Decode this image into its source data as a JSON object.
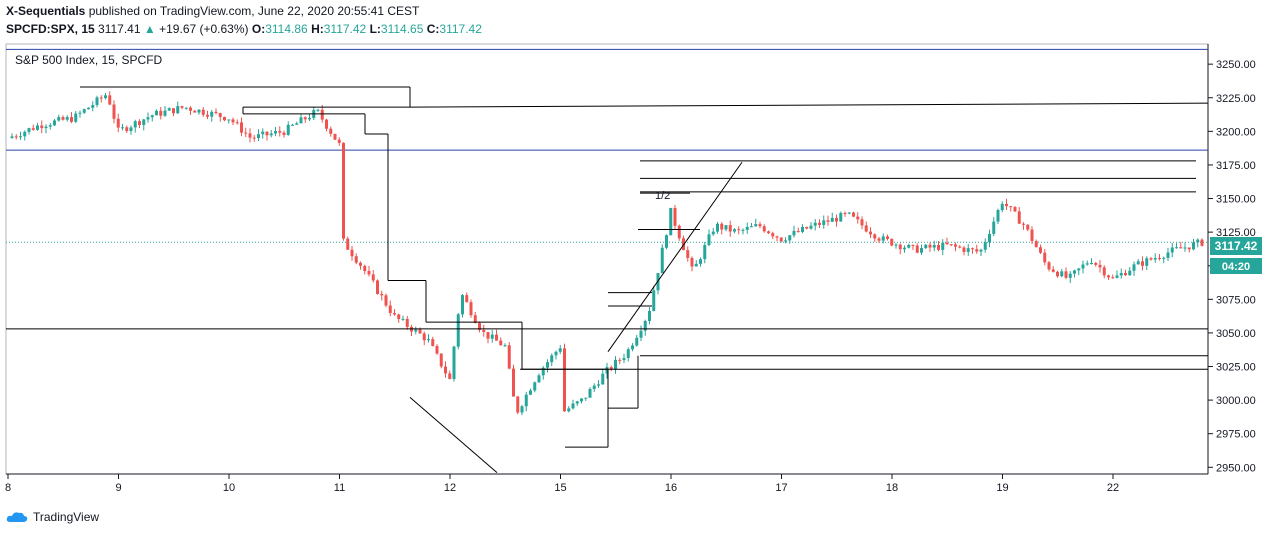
{
  "header": {
    "author": "X-Sequentials",
    "published": "published on TradingView.com, June 22, 2020 20:55:41 CEST",
    "symbol": "SPCFD:SPX, 15",
    "last": "3117.41",
    "change_icon": "triangle-up-icon",
    "change": "+19.67 (+0.63%)",
    "o_label": "O:",
    "o": "3114.86",
    "h_label": "H:",
    "h": "3117.42",
    "l_label": "L:",
    "l": "3114.65",
    "c_label": "C:",
    "c": "3117.42"
  },
  "legend_title": "S&P 500 Index, 15, SPCFD",
  "annotation_half": "1/2",
  "price_badge": "3117.42",
  "time_badge": "04:20",
  "footer": {
    "brand": "TradingView",
    "logo_icon": "tradingview-cloud-icon"
  },
  "colors": {
    "up": "#26a69a",
    "down": "#ef5350",
    "hline": "#2a45a6",
    "line": "#000000",
    "badge": "#26a69a"
  },
  "chart_data": {
    "type": "candlestick",
    "title": "S&P 500 Index, 15, SPCFD",
    "ylim": [
      2945,
      3265
    ],
    "y_ticks": [
      "3250.00",
      "3225.00",
      "3200.00",
      "3175.00",
      "3150.00",
      "3125.00",
      "3100.00",
      "3075.00",
      "3050.00",
      "3025.00",
      "3000.00",
      "2975.00",
      "2950.00"
    ],
    "x_ticks": [
      "8",
      "9",
      "10",
      "11",
      "12",
      "15",
      "16",
      "17",
      "18",
      "19",
      "22"
    ],
    "price_path": [
      [
        0,
        3195
      ],
      [
        0.3,
        3205
      ],
      [
        0.6,
        3210
      ],
      [
        0.9,
        3228
      ],
      [
        1.0,
        3200
      ],
      [
        1.3,
        3212
      ],
      [
        1.6,
        3218
      ],
      [
        2.0,
        3210
      ],
      [
        2.2,
        3195
      ],
      [
        2.5,
        3200
      ],
      [
        2.8,
        3215
      ],
      [
        3.0,
        3190
      ],
      [
        3.0,
        3122
      ],
      [
        3.2,
        3100
      ],
      [
        3.5,
        3062
      ],
      [
        3.8,
        3045
      ],
      [
        4.0,
        3015
      ],
      [
        4.1,
        3080
      ],
      [
        4.3,
        3050
      ],
      [
        4.5,
        3040
      ],
      [
        4.6,
        2990
      ],
      [
        4.8,
        3020
      ],
      [
        5.0,
        3040
      ],
      [
        5.0,
        2990
      ],
      [
        5.2,
        3000
      ],
      [
        5.4,
        3020
      ],
      [
        5.6,
        3035
      ],
      [
        5.8,
        3065
      ],
      [
        6.0,
        3140
      ],
      [
        6.2,
        3095
      ],
      [
        6.4,
        3130
      ],
      [
        6.6,
        3125
      ],
      [
        6.8,
        3130
      ],
      [
        7.0,
        3120
      ],
      [
        7.3,
        3130
      ],
      [
        7.6,
        3138
      ],
      [
        7.9,
        3120
      ],
      [
        8.2,
        3112
      ],
      [
        8.5,
        3115
      ],
      [
        8.8,
        3110
      ],
      [
        9.0,
        3148
      ],
      [
        9.2,
        3130
      ],
      [
        9.4,
        3100
      ],
      [
        9.6,
        3090
      ],
      [
        9.8,
        3105
      ],
      [
        10.0,
        3090
      ],
      [
        10.2,
        3100
      ],
      [
        10.5,
        3110
      ],
      [
        10.8,
        3117.42
      ]
    ],
    "horizontal_levels": [
      3261,
      3186
    ],
    "trend_levels": [
      3053,
      3221,
      3178,
      3165,
      3155,
      3033,
      3023
    ],
    "last_price": 3117.42
  }
}
